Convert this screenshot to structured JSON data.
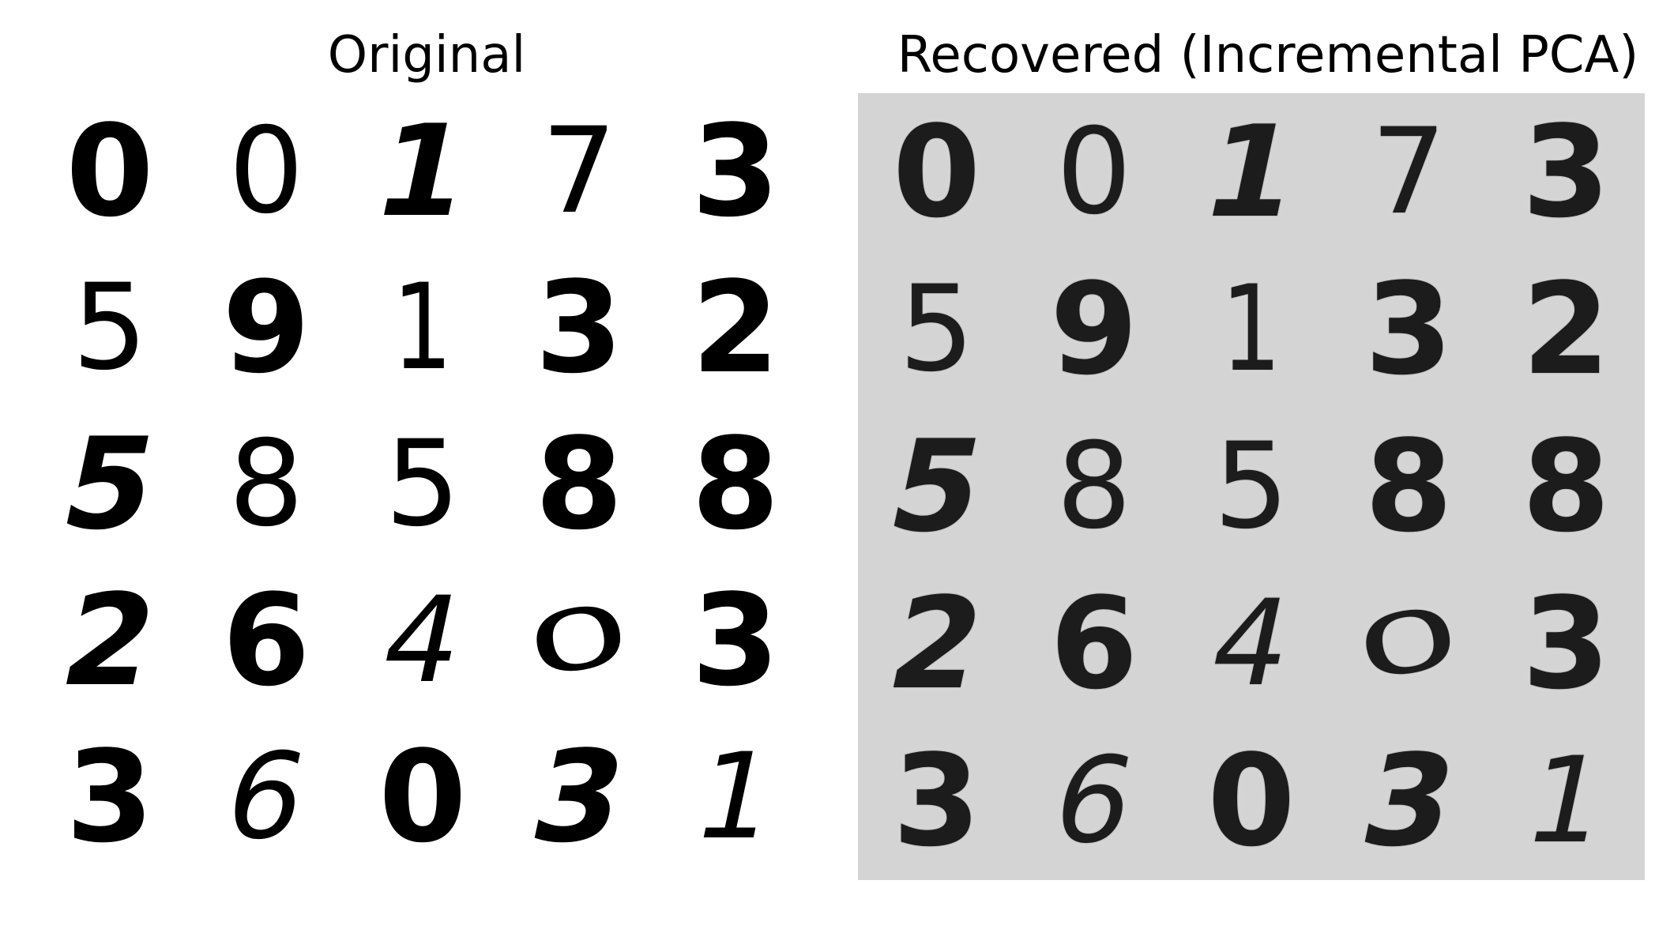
{
  "titles": {
    "original": "Original",
    "recovered": "Recovered (Incremental PCA)"
  },
  "colors": {
    "ink": "#000000",
    "recovered_background": "#d4d4d4",
    "original_background": "#ffffff"
  },
  "original_digits": [
    [
      "0",
      "0",
      "1",
      "7",
      "3"
    ],
    [
      "5",
      "9",
      "1",
      "3",
      "2"
    ],
    [
      "5",
      "8",
      "5",
      "8",
      "8"
    ],
    [
      "2",
      "6",
      "4",
      "0",
      "3"
    ],
    [
      "3",
      "6",
      "0",
      "3",
      "1"
    ]
  ],
  "recovered_digits": [
    [
      "0",
      "0",
      "1",
      "7",
      "3"
    ],
    [
      "5",
      "9",
      "1",
      "3",
      "2"
    ],
    [
      "5",
      "8",
      "5",
      "8",
      "8"
    ],
    [
      "2",
      "6",
      "4",
      "0",
      "3"
    ],
    [
      "3",
      "6",
      "0",
      "3",
      "1"
    ]
  ],
  "digit_styles": [
    [
      "",
      "thin",
      "tilt-r",
      "thin",
      ""
    ],
    [
      "thin",
      "",
      "thin narrow",
      "",
      ""
    ],
    [
      "tilt-r",
      "thin",
      "thin",
      "",
      ""
    ],
    [
      "tilt-r",
      "",
      "thin tilt-r",
      "flat thin",
      ""
    ],
    [
      "",
      "thin tilt-r",
      "",
      "tilt-r",
      "tilt-r thin"
    ]
  ]
}
